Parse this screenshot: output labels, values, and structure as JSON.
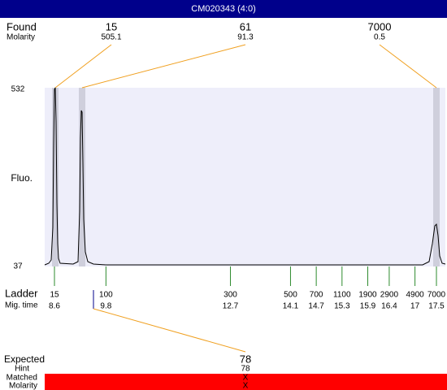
{
  "header": {
    "title": "CM020343 (4:0)"
  },
  "found": {
    "label": "Found",
    "molarity_label": "Molarity",
    "peaks": [
      {
        "size": "15",
        "molarity": "505.1"
      },
      {
        "size": "61",
        "molarity": "91.3"
      },
      {
        "size": "7000",
        "molarity": "0.5"
      }
    ]
  },
  "axis": {
    "label": "Fluo.",
    "max": "532",
    "min": "37"
  },
  "ladder": {
    "label": "Ladder",
    "migtime_label": "Mig. time",
    "sizes": [
      "15",
      "100",
      "300",
      "500",
      "700",
      "1100",
      "1900",
      "2900",
      "4900",
      "7000"
    ],
    "migtimes": [
      8.6,
      9.8,
      12.7,
      14.1,
      14.7,
      15.3,
      15.9,
      16.4,
      17,
      17.5
    ]
  },
  "expected": {
    "label": "Expected",
    "value": "78",
    "hint_label": "Hint",
    "hint": "78",
    "matched_label": "Matched",
    "matched": "X",
    "molarity_label": "Molarity",
    "molarity": "X"
  }
}
